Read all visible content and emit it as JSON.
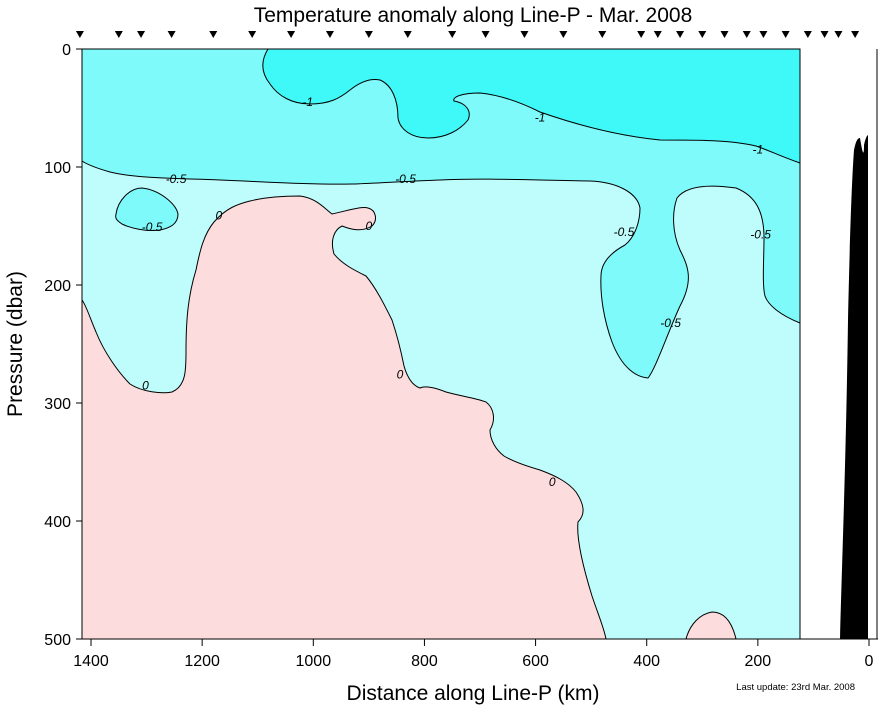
{
  "chart_data": {
    "type": "contour",
    "title": "Temperature anomaly along Line-P - Mar. 2008",
    "xlabel": "Distance along Line-P (km)",
    "ylabel": "Pressure (dbar)",
    "xlim": [
      1420,
      0
    ],
    "ylim": [
      500,
      0
    ],
    "x_ticks": [
      1400,
      1200,
      1000,
      800,
      600,
      400,
      200,
      0
    ],
    "y_ticks": [
      0,
      100,
      200,
      300,
      400,
      500
    ],
    "x_tick_labels": [
      "1400",
      "1200",
      "1000",
      "800",
      "600",
      "400",
      "200",
      "0"
    ],
    "y_tick_labels": [
      "0",
      "100",
      "200",
      "300",
      "400",
      "500"
    ],
    "station_distances_km": [
      1420,
      1350,
      1310,
      1255,
      1180,
      1110,
      1040,
      970,
      900,
      830,
      750,
      690,
      620,
      550,
      480,
      410,
      380,
      340,
      300,
      260,
      220,
      190,
      150,
      110,
      80,
      55,
      25
    ],
    "contour_levels": [
      -1,
      -0.5,
      0
    ],
    "contour_labels": [
      {
        "text": "-1",
        "x": 1010,
        "y": 45
      },
      {
        "text": "-1",
        "x": 592,
        "y": 58
      },
      {
        "text": "-1",
        "x": 200,
        "y": 85
      },
      {
        "text": "-0.5",
        "x": 1247,
        "y": 110
      },
      {
        "text": "-0.5",
        "x": 834,
        "y": 110
      },
      {
        "text": "-0.5",
        "x": 1290,
        "y": 151
      },
      {
        "text": "0",
        "x": 1170,
        "y": 141
      },
      {
        "text": "0",
        "x": 900,
        "y": 150
      },
      {
        "text": "-0.5",
        "x": 441,
        "y": 155
      },
      {
        "text": "-0.5",
        "x": 195,
        "y": 157
      },
      {
        "text": "-0.5",
        "x": 357,
        "y": 232
      },
      {
        "text": "0",
        "x": 1302,
        "y": 285
      },
      {
        "text": "0",
        "x": 844,
        "y": 276
      },
      {
        "text": "0",
        "x": 570,
        "y": 367
      }
    ],
    "fill_colors": {
      "below_-1": "#3ff8f8",
      "-1_to_-0.5": "#7ffafa",
      "-0.5_to_0": "#bffcfc",
      "above_0": "#fcdcdc"
    },
    "bathymetry_color": "#000000",
    "footnote": "Last update: 23rd Mar. 2008"
  }
}
